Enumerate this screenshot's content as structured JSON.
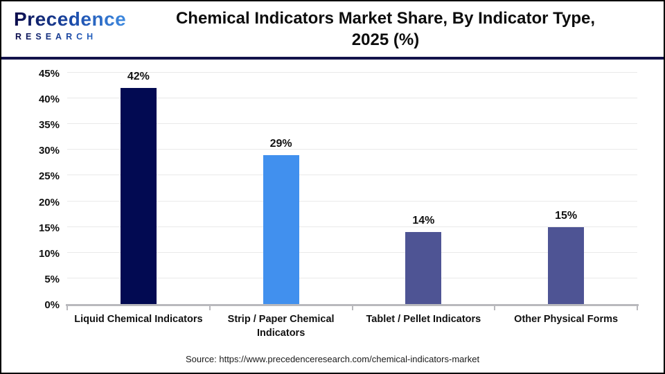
{
  "logo": {
    "name": "Precedence",
    "subname": "RESEARCH"
  },
  "header": {
    "title_line1": "Chemical Indicators Market Share, By Indicator Type,",
    "title_line2": "2025 (%)"
  },
  "source": "Source: https://www.precedenceresearch.com/chemical-indicators-market",
  "colors": {
    "header_divider": "#13134b",
    "navy_bar": "#020a52",
    "blue_bar": "#4190ee",
    "indigo_bar": "#4e5494",
    "gridline": "#e9e9e9",
    "axis_line": "#b9b9bd"
  },
  "chart_data": {
    "type": "bar",
    "title": "Chemical Indicators Market Share, By Indicator Type, 2025 (%)",
    "categories": [
      "Liquid Chemical Indicators",
      "Strip / Paper Chemical Indicators",
      "Tablet / Pellet Indicators",
      "Other Physical Forms"
    ],
    "values": [
      42,
      29,
      14,
      15
    ],
    "value_labels": [
      "42%",
      "29%",
      "14%",
      "15%"
    ],
    "bar_colors": [
      "#020a52",
      "#4190ee",
      "#4e5494",
      "#4e5494"
    ],
    "xlabel": "",
    "ylabel": "",
    "ylim": [
      0,
      45
    ],
    "ytick_step": 5,
    "ytick_labels": [
      "0%",
      "5%",
      "10%",
      "15%",
      "20%",
      "25%",
      "30%",
      "35%",
      "40%",
      "45%"
    ],
    "grid": true,
    "legend": false
  }
}
